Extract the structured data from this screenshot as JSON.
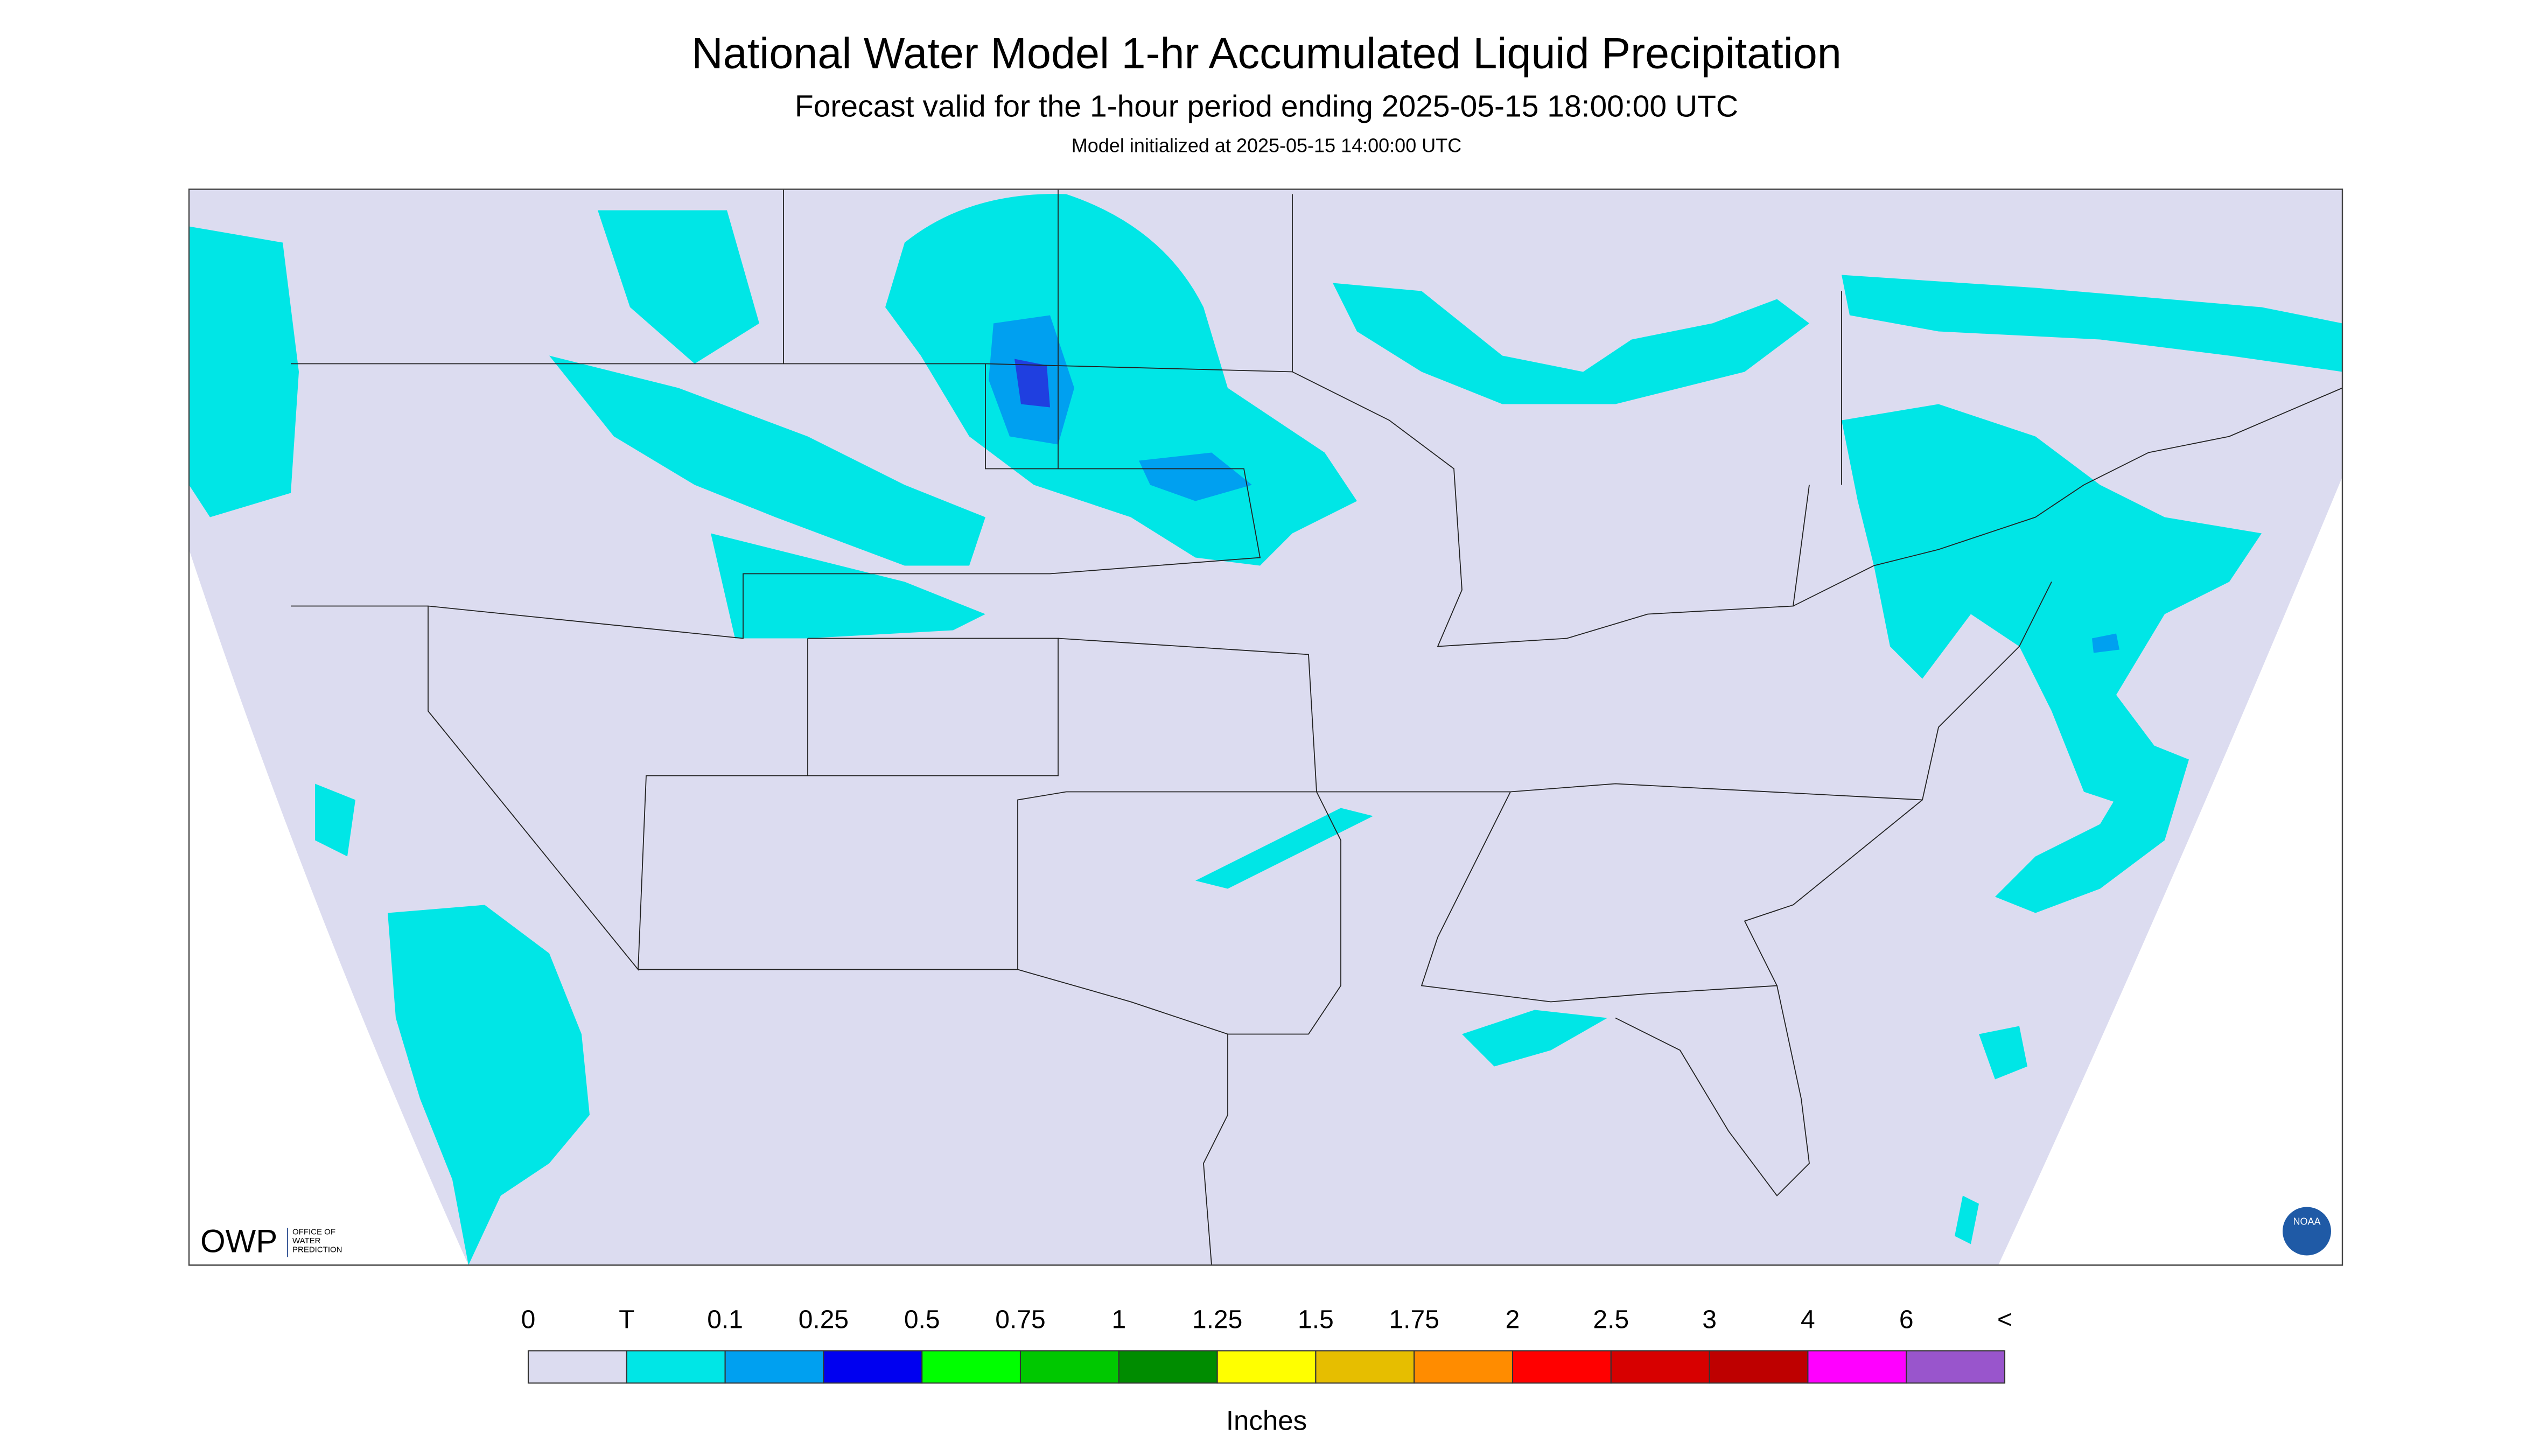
{
  "header": {
    "title": "National Water Model 1-hr Accumulated Liquid Precipitation",
    "subtitle": "Forecast valid for the 1-hour period ending 2025-05-15 18:00:00 UTC",
    "init": "Model initialized at 2025-05-15 14:00:00 UTC"
  },
  "legend": {
    "labels": [
      "0",
      "T",
      "0.1",
      "0.25",
      "0.5",
      "0.75",
      "1",
      "1.25",
      "1.5",
      "1.75",
      "2",
      "2.5",
      "3",
      "4",
      "6",
      "<"
    ],
    "colors": [
      "#dcdcf0",
      "#00e6e6",
      "#00a0f0",
      "#0000f0",
      "#00ff00",
      "#00c800",
      "#008c00",
      "#ffff00",
      "#e6be00",
      "#ff8c00",
      "#ff0000",
      "#d70000",
      "#be0000",
      "#ff00ff",
      "#9955cc"
    ],
    "unit": "Inches"
  },
  "logos": {
    "owp": "OWP",
    "owp_sub": [
      "OFFICE OF",
      "WATER",
      "PREDICTION"
    ],
    "noaa": "NOAA"
  }
}
